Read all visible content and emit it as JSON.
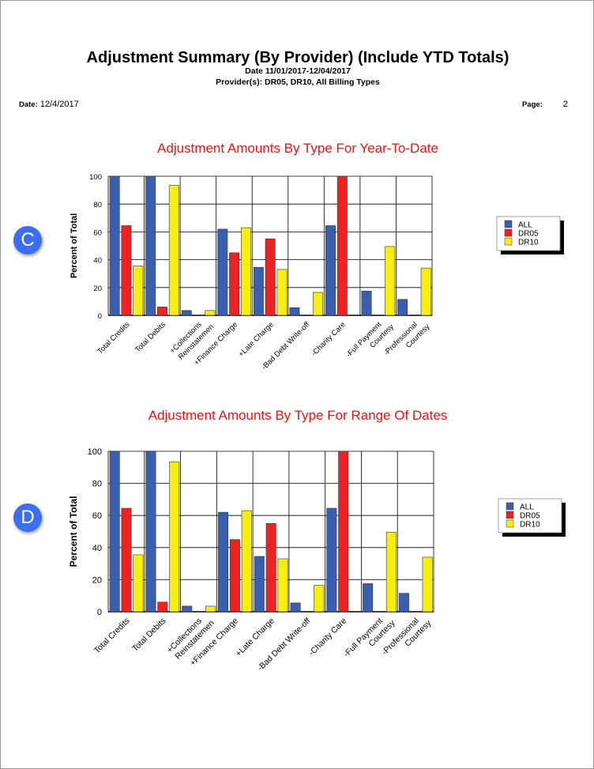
{
  "header": {
    "title": "Adjustment Summary (By Provider) (Include YTD Totals)",
    "date_range": "Date 11/01/2017-12/04/2017",
    "providers": "Provider(s): DR05, DR10, All Billing Types",
    "date_label": "Date:",
    "date_value": "12/4/2017",
    "page_label": "Page:",
    "page_value": "2"
  },
  "badges": [
    "C",
    "D"
  ],
  "colors": {
    "ALL": "#3a5fb0",
    "DR05": "#ee2222",
    "DR10": "#f5ee10",
    "title": "#ee1111"
  },
  "chart_data": [
    {
      "type": "bar",
      "title": "Adjustment Amounts By Type For Year-To-Date",
      "ylabel": "Percent of Total",
      "ylim": [
        0,
        100
      ],
      "yticks": [
        0,
        20,
        40,
        60,
        80,
        100
      ],
      "grid": true,
      "legend": "right",
      "categories": [
        "Total Credits",
        "Total Debits",
        "+Collections\nReinstatemen",
        "+Finance Charge",
        "+Late Charge",
        "-Bad Debt Write-off",
        "-Charity Care",
        "-Full Payment\nCourtesy",
        "-Professional\nCourtesy"
      ],
      "series": [
        {
          "name": "ALL",
          "values": [
            100,
            100,
            3.5,
            62,
            34.5,
            5.5,
            64.5,
            17.5,
            11.5
          ]
        },
        {
          "name": "DR05",
          "values": [
            64.5,
            6,
            0,
            45,
            55,
            0,
            100,
            0,
            0
          ]
        },
        {
          "name": "DR10",
          "values": [
            35.5,
            93.5,
            3.5,
            63,
            33,
            16.5,
            0,
            49.5,
            34
          ]
        }
      ]
    },
    {
      "type": "bar",
      "title": "Adjustment Amounts By Type For Range Of Dates",
      "ylabel": "Percent of Total",
      "ylim": [
        0,
        100
      ],
      "yticks": [
        0,
        20,
        40,
        60,
        80,
        100
      ],
      "grid": true,
      "legend": "right",
      "categories": [
        "Total Credits",
        "Total Debits",
        "+Collections\nReinstatemen",
        "+Finance Charge",
        "+Late Charge",
        "-Bad Debt Write-off",
        "-Charity Care",
        "-Full Payment\nCourtesy",
        "-Professional\nCourtesy"
      ],
      "series": [
        {
          "name": "ALL",
          "values": [
            100,
            100,
            3.5,
            62,
            34.5,
            5.5,
            64.5,
            17.5,
            11.5
          ]
        },
        {
          "name": "DR05",
          "values": [
            64.5,
            6,
            0,
            45,
            55,
            0,
            100,
            0,
            0
          ]
        },
        {
          "name": "DR10",
          "values": [
            35.5,
            93.5,
            3.5,
            63,
            33,
            16.5,
            0,
            49.5,
            34
          ]
        }
      ]
    }
  ]
}
